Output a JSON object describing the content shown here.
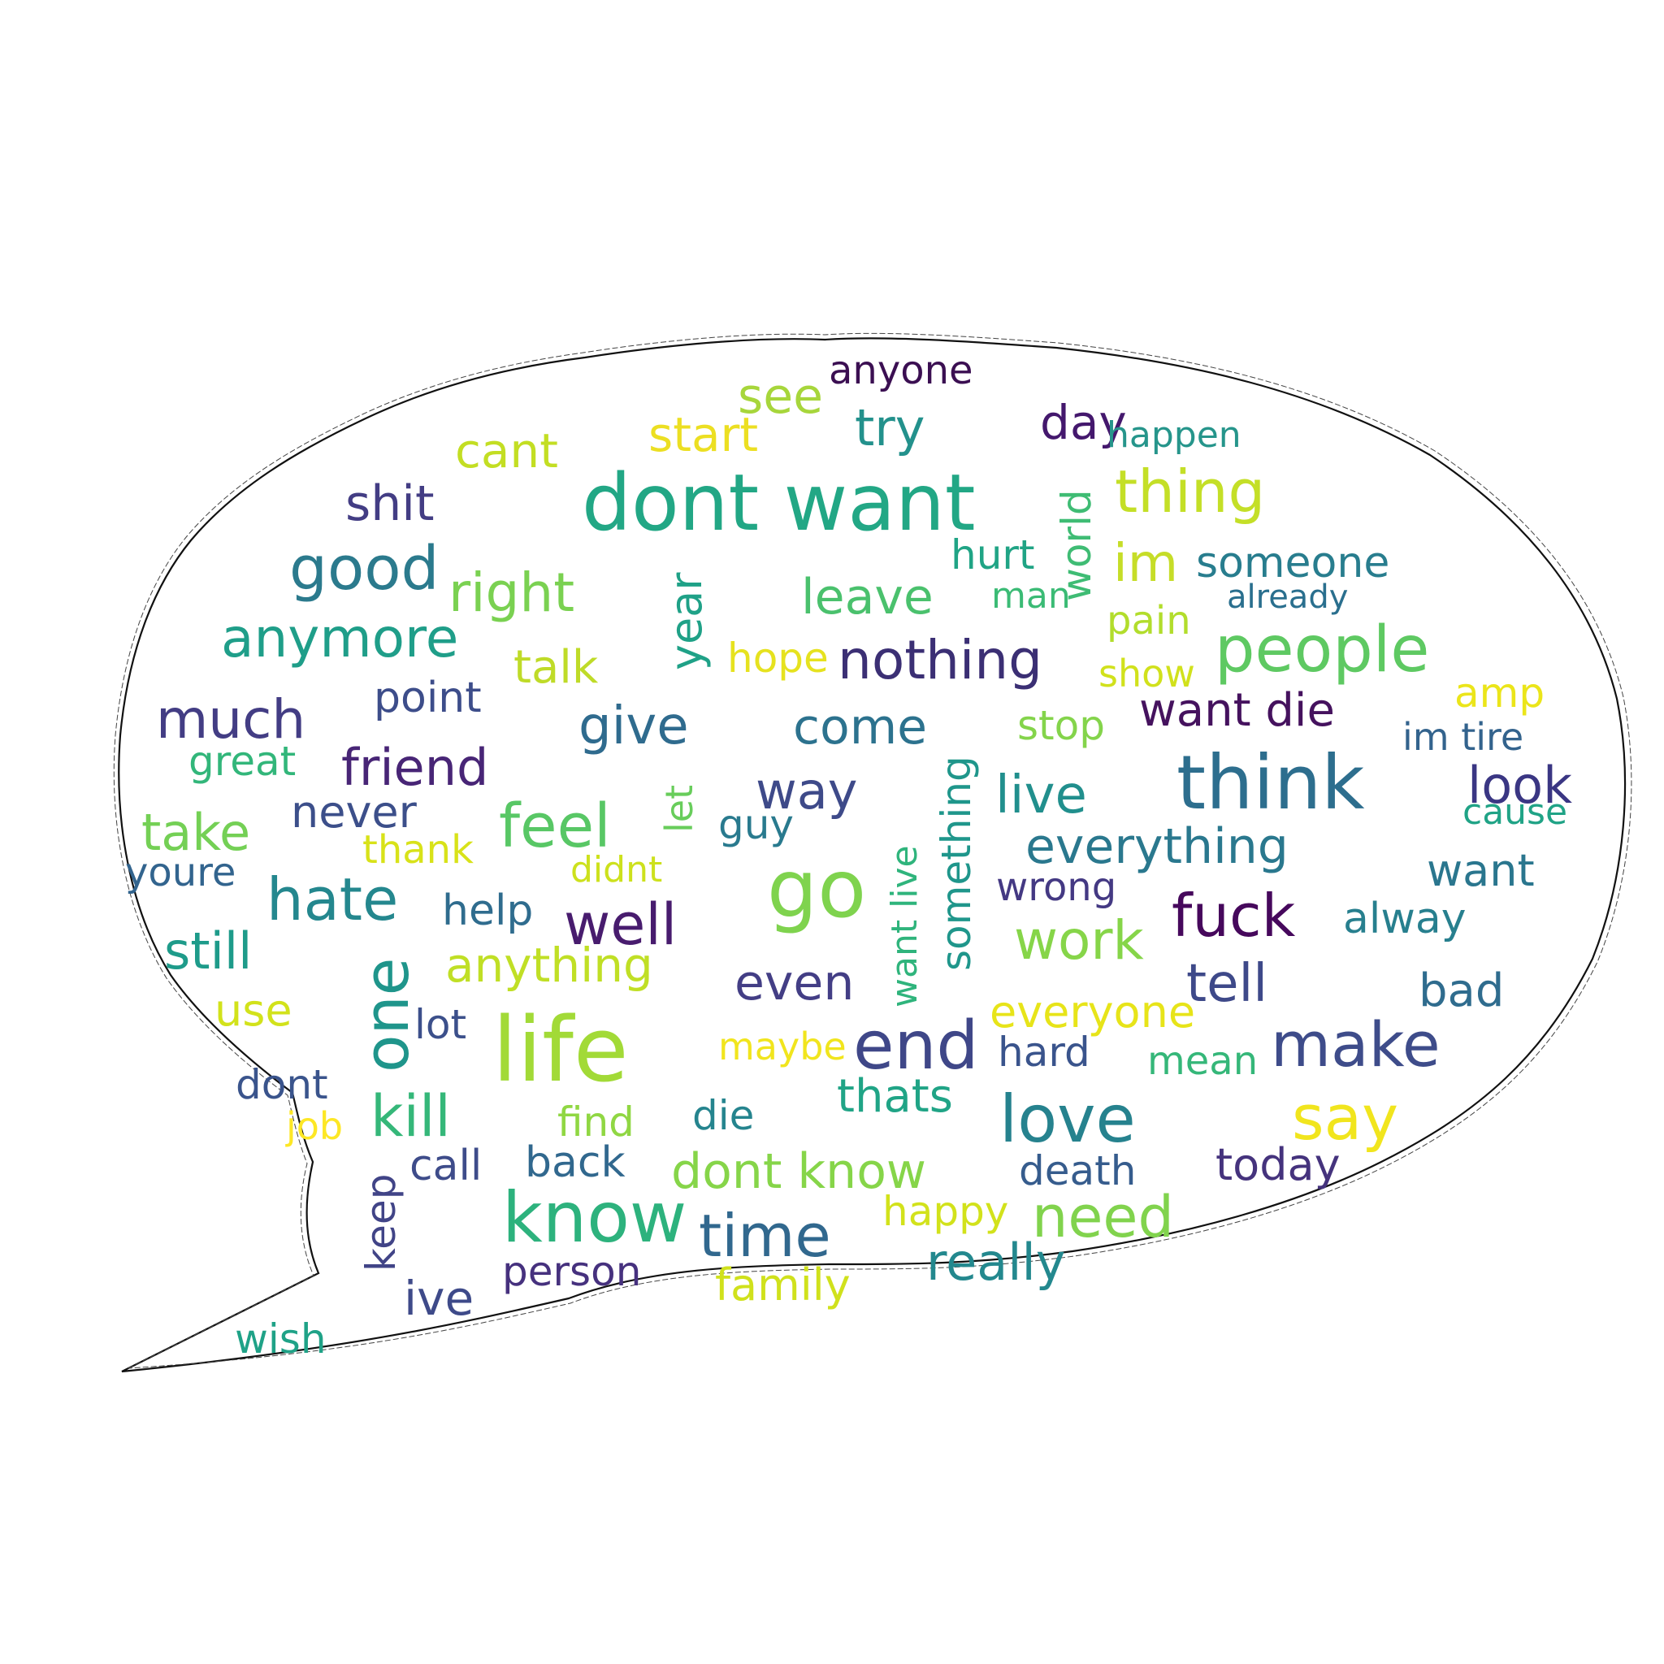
{
  "words": [
    {
      "text": "anyone",
      "color": "#3b0f52"
    },
    {
      "text": "see",
      "color": "#a7d63b"
    },
    {
      "text": "try",
      "color": "#23918c"
    },
    {
      "text": "day",
      "color": "#44186d"
    },
    {
      "text": "happen",
      "color": "#26958b"
    },
    {
      "text": "start",
      "color": "#ecdf22"
    },
    {
      "text": "cant",
      "color": "#c3de23"
    },
    {
      "text": "world",
      "color": "#3fbc74"
    },
    {
      "text": "thing",
      "color": "#c4df27"
    },
    {
      "text": "dont want",
      "color": "#22a785"
    },
    {
      "text": "shit",
      "color": "#433d84"
    },
    {
      "text": "hurt",
      "color": "#20a485"
    },
    {
      "text": "someone",
      "color": "#287d8e"
    },
    {
      "text": "good",
      "color": "#2b7a8d"
    },
    {
      "text": "right",
      "color": "#7ad151"
    },
    {
      "text": "year",
      "color": "#1fa187"
    },
    {
      "text": "leave",
      "color": "#4ac16d"
    },
    {
      "text": "im",
      "color": "#c6dd28"
    },
    {
      "text": "man",
      "color": "#3bbb75"
    },
    {
      "text": "already",
      "color": "#2a6f8e"
    },
    {
      "text": "pain",
      "color": "#b2dd2c"
    },
    {
      "text": "anymore",
      "color": "#1f9e89"
    },
    {
      "text": "people",
      "color": "#5ec962"
    },
    {
      "text": "hope",
      "color": "#e6e21f"
    },
    {
      "text": "nothing",
      "color": "#3b2f74"
    },
    {
      "text": "talk",
      "color": "#bfdb28"
    },
    {
      "text": "show",
      "color": "#d1e11c"
    },
    {
      "text": "amp",
      "color": "#ebe51a"
    },
    {
      "text": "point",
      "color": "#3d4d8a"
    },
    {
      "text": "much",
      "color": "#433d84"
    },
    {
      "text": "give",
      "color": "#2f6b8e"
    },
    {
      "text": "come",
      "color": "#2c728e"
    },
    {
      "text": "something",
      "color": "#1f968b"
    },
    {
      "text": "want die",
      "color": "#45125e"
    },
    {
      "text": "stop",
      "color": "#84d44b"
    },
    {
      "text": "im tire",
      "color": "#33638d"
    },
    {
      "text": "great",
      "color": "#32b67a"
    },
    {
      "text": "friend",
      "color": "#482576"
    },
    {
      "text": "think",
      "color": "#2d6e8e"
    },
    {
      "text": "let",
      "color": "#68cd5b"
    },
    {
      "text": "look",
      "color": "#3a3683"
    },
    {
      "text": "way",
      "color": "#3e4a89"
    },
    {
      "text": "live",
      "color": "#218f8d"
    },
    {
      "text": "want live",
      "color": "#2fb47c"
    },
    {
      "text": "cause",
      "color": "#20a386"
    },
    {
      "text": "take",
      "color": "#74d055"
    },
    {
      "text": "never",
      "color": "#3c4f8a"
    },
    {
      "text": "feel",
      "color": "#58c765"
    },
    {
      "text": "guy",
      "color": "#297a8e"
    },
    {
      "text": "everything",
      "color": "#2a788e"
    },
    {
      "text": "thank",
      "color": "#d8e219"
    },
    {
      "text": "youre",
      "color": "#32648e"
    },
    {
      "text": "didnt",
      "color": "#cde11d"
    },
    {
      "text": "go",
      "color": "#7fd34e"
    },
    {
      "text": "wrong",
      "color": "#443983"
    },
    {
      "text": "want",
      "color": "#2a768e"
    },
    {
      "text": "hate",
      "color": "#24878e"
    },
    {
      "text": "help",
      "color": "#2f6c8e"
    },
    {
      "text": "well",
      "color": "#481c6e"
    },
    {
      "text": "fuck",
      "color": "#46085c"
    },
    {
      "text": "alway",
      "color": "#277f8e"
    },
    {
      "text": "still",
      "color": "#1e9b8a"
    },
    {
      "text": "work",
      "color": "#86d549"
    },
    {
      "text": "one",
      "color": "#1f958b"
    },
    {
      "text": "anything",
      "color": "#c0df25"
    },
    {
      "text": "even",
      "color": "#433e85"
    },
    {
      "text": "tell",
      "color": "#3e4989"
    },
    {
      "text": "bad",
      "color": "#2f6c8e"
    },
    {
      "text": "use",
      "color": "#d2e21b"
    },
    {
      "text": "everyone",
      "color": "#e7e419"
    },
    {
      "text": "lot",
      "color": "#3c508b"
    },
    {
      "text": "life",
      "color": "#a2da37"
    },
    {
      "text": "end",
      "color": "#3f4788"
    },
    {
      "text": "make",
      "color": "#3e4c8a"
    },
    {
      "text": "maybe",
      "color": "#f1e51d"
    },
    {
      "text": "hard",
      "color": "#3a548c"
    },
    {
      "text": "mean",
      "color": "#35b779"
    },
    {
      "text": "dont",
      "color": "#3a548c"
    },
    {
      "text": "kill",
      "color": "#35b779"
    },
    {
      "text": "thats",
      "color": "#20a486"
    },
    {
      "text": "love",
      "color": "#26828e"
    },
    {
      "text": "say",
      "color": "#f1e51d"
    },
    {
      "text": "job",
      "color": "#fde725"
    },
    {
      "text": "find",
      "color": "#90d743"
    },
    {
      "text": "die",
      "color": "#25848e"
    },
    {
      "text": "keep",
      "color": "#414487"
    },
    {
      "text": "call",
      "color": "#3e4c8a"
    },
    {
      "text": "back",
      "color": "#31688e"
    },
    {
      "text": "dont know",
      "color": "#86d549"
    },
    {
      "text": "death",
      "color": "#365c8d"
    },
    {
      "text": "today",
      "color": "#45337d"
    },
    {
      "text": "know",
      "color": "#2db27d"
    },
    {
      "text": "time",
      "color": "#31688e"
    },
    {
      "text": "happy",
      "color": "#d2e21b"
    },
    {
      "text": "need",
      "color": "#81d34d"
    },
    {
      "text": "really",
      "color": "#23888e"
    },
    {
      "text": "person",
      "color": "#46317e"
    },
    {
      "text": "family",
      "color": "#d0e11c"
    },
    {
      "text": "ive",
      "color": "#3e4a89"
    },
    {
      "text": "wish",
      "color": "#1fa287"
    }
  ]
}
